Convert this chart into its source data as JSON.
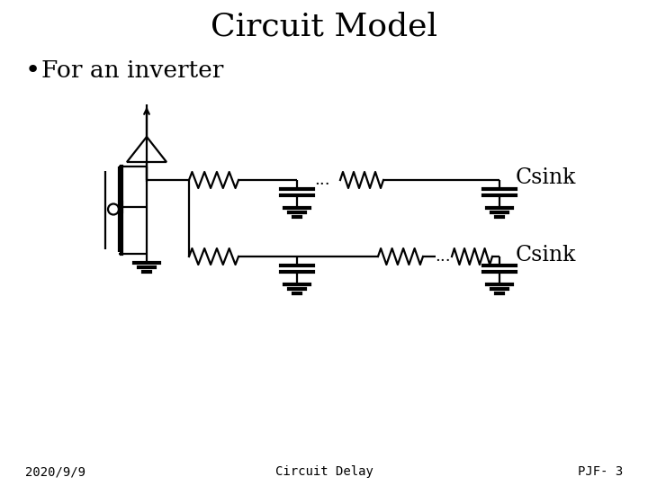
{
  "title": "Circuit Model",
  "bullet": "For an inverter",
  "footer_left": "2020/9/9",
  "footer_center": "Circuit Delay",
  "footer_right": "PJF- 3",
  "csink_label": "Csink",
  "bg_color": "#ffffff",
  "fg_color": "#000000",
  "title_fontsize": 26,
  "bullet_fontsize": 19,
  "footer_fontsize": 10,
  "label_fontsize": 17
}
